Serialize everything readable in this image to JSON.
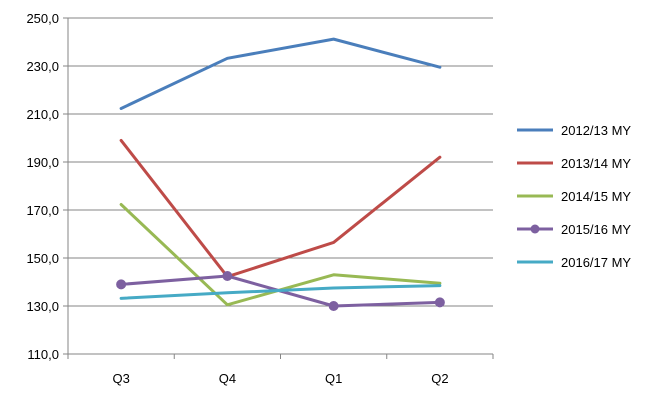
{
  "chart_data": {
    "type": "line",
    "categories": [
      "Q3",
      "Q4",
      "Q1",
      "Q2"
    ],
    "ylim": [
      110,
      250
    ],
    "yticks": [
      "110,0",
      "130,0",
      "150,0",
      "170,0",
      "190,0",
      "210,0",
      "230,0",
      "250,0"
    ],
    "grid": "horizontal",
    "legend_position": "right",
    "series": [
      {
        "name": "2012/13 MY",
        "color": "#4a7ebb",
        "marker": false,
        "values": [
          212.3,
          233.2,
          241.2,
          229.5
        ]
      },
      {
        "name": "2013/14 MY",
        "color": "#be4b48",
        "marker": false,
        "values": [
          199.0,
          142.2,
          156.5,
          192.0
        ]
      },
      {
        "name": "2014/15 MY",
        "color": "#98b954",
        "marker": false,
        "values": [
          172.3,
          130.5,
          143.0,
          139.5
        ]
      },
      {
        "name": "2015/16 MY",
        "color": "#7d60a0",
        "marker": true,
        "values": [
          139.0,
          142.5,
          130.0,
          131.5
        ]
      },
      {
        "name": "2016/17 MY",
        "color": "#46aac5",
        "marker": false,
        "values": [
          133.2,
          135.5,
          137.5,
          138.5
        ]
      }
    ]
  }
}
